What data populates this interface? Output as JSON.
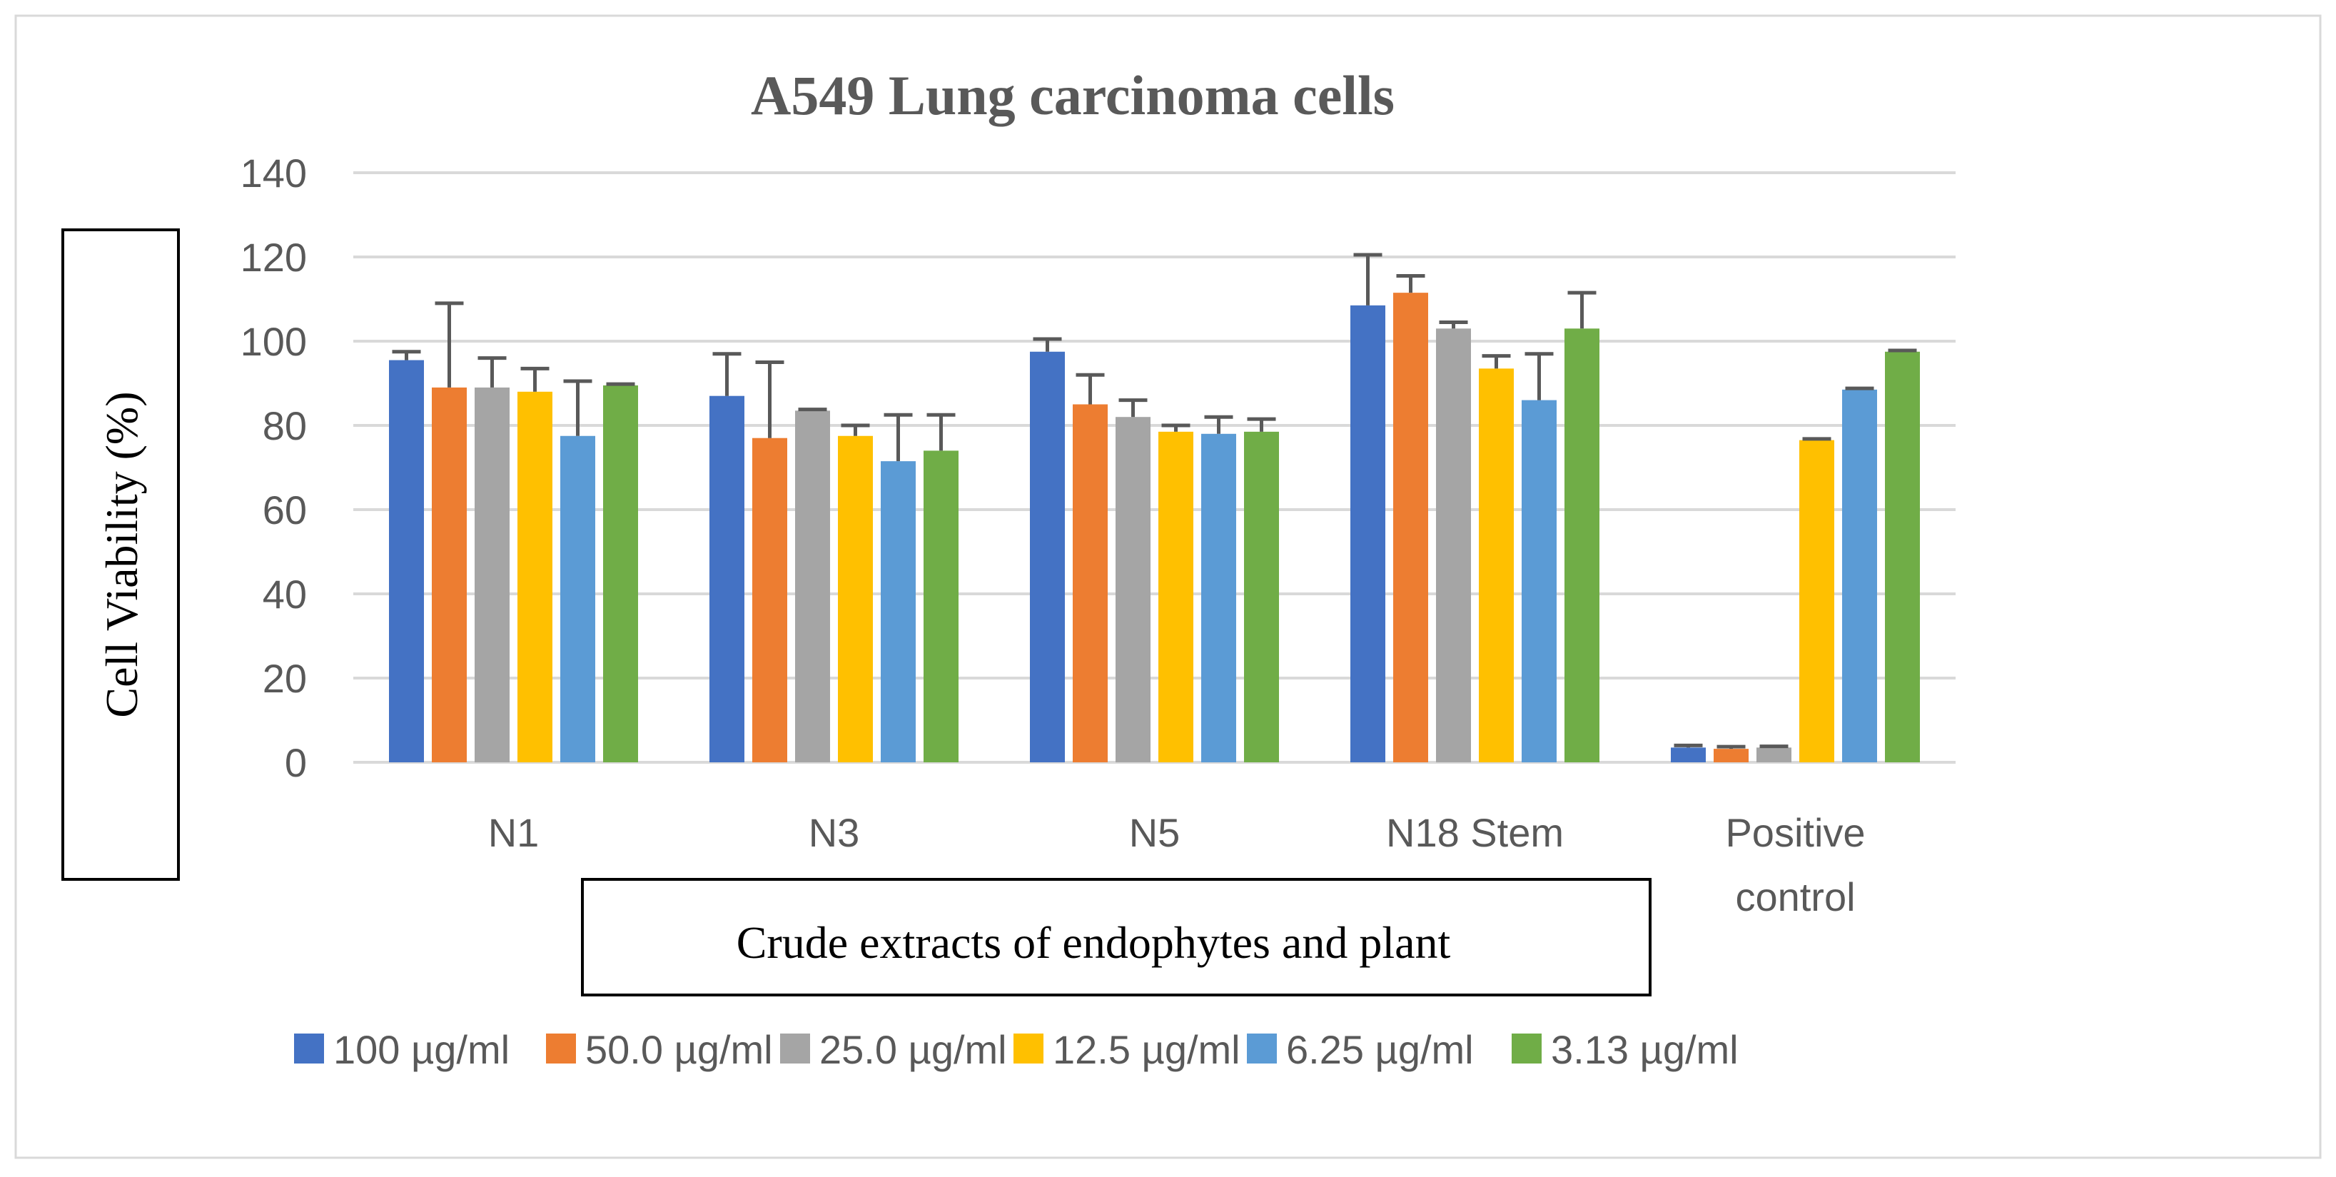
{
  "chart_data": {
    "type": "bar",
    "title": "A549 Lung carcinoma cells",
    "ylabel": "Cell Viability (%)",
    "xlabel": "Crude extracts of endophytes and plant",
    "ylim": [
      0,
      140
    ],
    "yticks": [
      0,
      20,
      40,
      60,
      80,
      100,
      120,
      140
    ],
    "grid": true,
    "legend_position": "bottom",
    "categories": [
      "N1",
      "N3",
      "N5",
      "N18 Stem",
      "Positive control"
    ],
    "series": [
      {
        "name": "100 µg/ml",
        "color": "#4472C4",
        "values": [
          95.5,
          87,
          97.5,
          108.5,
          3.5
        ],
        "errors": [
          2,
          10,
          3,
          12,
          0.5
        ]
      },
      {
        "name": "50.0 µg/ml",
        "color": "#ED7D31",
        "values": [
          89,
          77,
          85,
          111.5,
          3.2
        ],
        "errors": [
          20,
          18,
          7,
          4,
          0.5
        ]
      },
      {
        "name": "25.0 µg/ml",
        "color": "#A5A5A5",
        "values": [
          89,
          83.5,
          82,
          103,
          3.5
        ],
        "errors": [
          7,
          0.3,
          4,
          1.5,
          0.3
        ]
      },
      {
        "name": "12.5 µg/ml",
        "color": "#FFC000",
        "values": [
          88,
          77.5,
          78.5,
          93.5,
          76.5
        ],
        "errors": [
          5.5,
          2.5,
          1.5,
          3,
          0.3
        ]
      },
      {
        "name": "6.25 µg/ml",
        "color": "#5B9BD5",
        "values": [
          77.5,
          71.5,
          78,
          86,
          88.5
        ],
        "errors": [
          13,
          11,
          4,
          11,
          0.3
        ]
      },
      {
        "name": "3.13 µg/ml",
        "color": "#70AD47",
        "values": [
          89.5,
          74,
          78.5,
          103,
          97.5
        ],
        "errors": [
          0.3,
          8.5,
          3,
          8.5,
          0.3
        ]
      }
    ],
    "category_labels": [
      [
        "N1"
      ],
      [
        "N3"
      ],
      [
        "N5"
      ],
      [
        "N18 Stem"
      ],
      [
        "Positive",
        "control"
      ]
    ]
  }
}
